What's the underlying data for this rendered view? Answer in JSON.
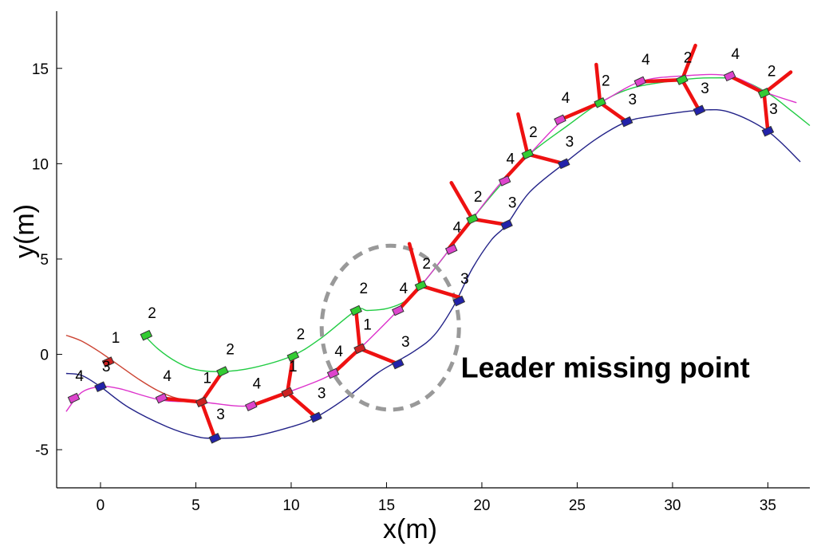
{
  "chart_data": {
    "type": "line",
    "title": "",
    "xlabel": "x(m)",
    "ylabel": "y(m)",
    "xlim": [
      -2.3,
      37.2
    ],
    "ylim": [
      -7,
      18
    ],
    "xticks": [
      "0",
      "5",
      "10",
      "15",
      "20",
      "25",
      "30",
      "35"
    ],
    "yticks": [
      "-5",
      "0",
      "5",
      "10",
      "15"
    ],
    "grid": false,
    "series": [
      {
        "color": "#cc4433",
        "x": [
          -1.8,
          -1.0,
          0.0,
          1.0,
          2.0,
          3.0,
          4.0,
          5.3
        ],
        "y": [
          1.0,
          0.7,
          0.1,
          -0.6,
          -1.3,
          -1.9,
          -2.3,
          -2.5
        ]
      },
      {
        "color": "#22cc44",
        "x": [
          2.3,
          3.0,
          4.0,
          5.0,
          6.4,
          8.0,
          10.0,
          11.5,
          13.4,
          14.0,
          15.0,
          16.0,
          16.8,
          18.0,
          19.5,
          21.0,
          22.5,
          24.5,
          26.2,
          28.0,
          30.5,
          32.0,
          33.5,
          35.0,
          36.2,
          37.2
        ],
        "y": [
          1.0,
          0.3,
          -0.4,
          -0.8,
          -0.9,
          -0.7,
          -0.1,
          0.8,
          2.3,
          2.3,
          2.4,
          2.8,
          3.6,
          5.1,
          7.1,
          8.9,
          10.5,
          12.0,
          13.2,
          14.0,
          14.4,
          14.5,
          14.4,
          13.7,
          12.8,
          12.0
        ]
      },
      {
        "color": "#dd33cc",
        "x": [
          -1.8,
          -1.0,
          0.0,
          1.0,
          3.2,
          5.3,
          7.8,
          9.8,
          12.2,
          13.6,
          15.5,
          16.8,
          18.3,
          19.5,
          21.0,
          22.5,
          24.3,
          26.2,
          28.3,
          30.5,
          33.0,
          35.0,
          36.5
        ],
        "y": [
          -3.0,
          -2.0,
          -1.7,
          -1.8,
          -2.4,
          -2.5,
          -2.7,
          -2.0,
          -1.0,
          0.3,
          2.2,
          3.6,
          5.5,
          7.1,
          9.0,
          10.5,
          12.3,
          13.2,
          14.3,
          14.6,
          14.6,
          13.7,
          13.2
        ]
      },
      {
        "color": "#222288",
        "x": [
          -1.8,
          -1.0,
          0.0,
          1.5,
          3.5,
          5.0,
          6.0,
          8.0,
          10.0,
          11.3,
          13.0,
          14.5,
          15.5,
          16.5,
          17.5,
          18.5,
          19.5,
          20.5,
          21.3,
          22.5,
          24.3,
          26.0,
          27.6,
          29.0,
          31.4,
          33.0,
          35.0,
          36.7
        ],
        "y": [
          -1.0,
          -1.1,
          -1.7,
          -2.8,
          -3.8,
          -4.3,
          -4.4,
          -4.3,
          -3.8,
          -3.3,
          -2.2,
          -1.0,
          -0.4,
          0.2,
          1.0,
          2.5,
          4.5,
          6.0,
          6.8,
          8.5,
          10.0,
          11.3,
          12.2,
          12.5,
          12.8,
          12.7,
          11.7,
          10.1
        ]
      }
    ],
    "robot_markers": [
      {
        "id": "4",
        "x": -1.4,
        "y": -2.3
      },
      {
        "id": "3",
        "x": 0.0,
        "y": -1.7
      },
      {
        "id": "1",
        "x": 0.4,
        "y": -0.4
      },
      {
        "id": "2",
        "x": 2.4,
        "y": 1.0
      },
      {
        "id": "4",
        "x": 3.2,
        "y": -2.3
      },
      {
        "id": "1",
        "x": 5.3,
        "y": -2.5
      },
      {
        "id": "2",
        "x": 6.4,
        "y": -0.9
      },
      {
        "id": "3",
        "x": 6.0,
        "y": -4.4
      },
      {
        "id": "4",
        "x": 7.9,
        "y": -2.7
      },
      {
        "id": "1",
        "x": 9.8,
        "y": -2.0
      },
      {
        "id": "2",
        "x": 10.1,
        "y": -0.1
      },
      {
        "id": "3",
        "x": 11.3,
        "y": -3.3
      },
      {
        "id": "4",
        "x": 12.2,
        "y": -1.0
      },
      {
        "id": "1",
        "x": 13.6,
        "y": 0.3
      },
      {
        "id": "2",
        "x": 13.4,
        "y": 2.3
      },
      {
        "id": "3",
        "x": 15.6,
        "y": -0.5
      },
      {
        "id": "4",
        "x": 15.6,
        "y": 2.3
      },
      {
        "id": "2",
        "x": 16.8,
        "y": 3.6
      },
      {
        "id": "3",
        "x": 18.8,
        "y": 2.8
      },
      {
        "id": "4",
        "x": 18.4,
        "y": 5.5
      },
      {
        "id": "2",
        "x": 19.5,
        "y": 7.1
      },
      {
        "id": "3",
        "x": 21.3,
        "y": 6.8
      },
      {
        "id": "4",
        "x": 21.2,
        "y": 9.1
      },
      {
        "id": "2",
        "x": 22.4,
        "y": 10.5
      },
      {
        "id": "3",
        "x": 24.3,
        "y": 10.0
      },
      {
        "id": "4",
        "x": 24.1,
        "y": 12.3
      },
      {
        "id": "2",
        "x": 26.2,
        "y": 13.2
      },
      {
        "id": "3",
        "x": 27.6,
        "y": 12.2
      },
      {
        "id": "4",
        "x": 28.3,
        "y": 14.3
      },
      {
        "id": "2",
        "x": 30.5,
        "y": 14.4
      },
      {
        "id": "3",
        "x": 31.4,
        "y": 12.8
      },
      {
        "id": "4",
        "x": 33.0,
        "y": 14.6
      },
      {
        "id": "2",
        "x": 34.8,
        "y": 13.7
      },
      {
        "id": "3",
        "x": 35.0,
        "y": 11.7
      }
    ],
    "formation_links": [
      [
        5.3,
        -2.5,
        6.4,
        -0.9
      ],
      [
        5.3,
        -2.5,
        6.0,
        -4.4
      ],
      [
        5.3,
        -2.5,
        3.2,
        -2.3
      ],
      [
        9.8,
        -2.0,
        10.1,
        -0.1
      ],
      [
        9.8,
        -2.0,
        11.3,
        -3.3
      ],
      [
        9.8,
        -2.0,
        7.9,
        -2.7
      ],
      [
        13.6,
        0.3,
        13.4,
        2.3
      ],
      [
        13.6,
        0.3,
        15.6,
        -0.5
      ],
      [
        13.6,
        0.3,
        12.2,
        -1.0
      ],
      [
        16.8,
        3.6,
        16.2,
        5.8
      ],
      [
        16.8,
        3.6,
        18.8,
        3.0
      ],
      [
        16.8,
        3.6,
        15.6,
        2.3
      ],
      [
        19.5,
        7.1,
        18.4,
        9.0
      ],
      [
        19.5,
        7.1,
        21.3,
        6.8
      ],
      [
        19.5,
        7.1,
        18.3,
        5.6
      ],
      [
        22.4,
        10.5,
        21.9,
        12.6
      ],
      [
        22.4,
        10.5,
        24.3,
        10.0
      ],
      [
        22.4,
        10.5,
        21.2,
        9.2
      ],
      [
        26.2,
        13.2,
        26.0,
        15.2
      ],
      [
        26.2,
        13.2,
        27.6,
        12.2
      ],
      [
        26.2,
        13.2,
        24.1,
        12.3
      ],
      [
        30.5,
        14.4,
        31.2,
        16.2
      ],
      [
        30.5,
        14.4,
        31.4,
        12.8
      ],
      [
        30.5,
        14.4,
        28.3,
        14.3
      ],
      [
        34.8,
        13.7,
        36.2,
        14.8
      ],
      [
        34.8,
        13.7,
        35.0,
        11.7
      ],
      [
        34.8,
        13.7,
        33.0,
        14.6
      ]
    ],
    "labels": [
      {
        "text": "4",
        "x": -1.1,
        "y": -1.4
      },
      {
        "text": "3",
        "x": 0.3,
        "y": -0.9
      },
      {
        "text": "1",
        "x": 0.8,
        "y": 0.6
      },
      {
        "text": "2",
        "x": 2.7,
        "y": 1.9
      },
      {
        "text": "4",
        "x": 3.5,
        "y": -1.4
      },
      {
        "text": "1",
        "x": 5.6,
        "y": -1.5
      },
      {
        "text": "2",
        "x": 6.8,
        "y": 0.0
      },
      {
        "text": "3",
        "x": 6.3,
        "y": -3.4
      },
      {
        "text": "4",
        "x": 8.2,
        "y": -1.8
      },
      {
        "text": "1",
        "x": 10.1,
        "y": -0.9
      },
      {
        "text": "2",
        "x": 10.5,
        "y": 0.8
      },
      {
        "text": "3",
        "x": 11.6,
        "y": -2.3
      },
      {
        "text": "4",
        "x": 12.5,
        "y": -0.1
      },
      {
        "text": "1",
        "x": 14.0,
        "y": 1.3
      },
      {
        "text": "2",
        "x": 13.8,
        "y": 3.2
      },
      {
        "text": "3",
        "x": 16.0,
        "y": 0.4
      },
      {
        "text": "4",
        "x": 15.9,
        "y": 3.2
      },
      {
        "text": "2",
        "x": 17.1,
        "y": 4.5
      },
      {
        "text": "3",
        "x": 19.1,
        "y": 3.7
      },
      {
        "text": "4",
        "x": 18.7,
        "y": 6.4
      },
      {
        "text": "2",
        "x": 19.8,
        "y": 8.0
      },
      {
        "text": "3",
        "x": 21.6,
        "y": 7.7
      },
      {
        "text": "4",
        "x": 21.5,
        "y": 10.0
      },
      {
        "text": "2",
        "x": 22.7,
        "y": 11.4
      },
      {
        "text": "3",
        "x": 24.6,
        "y": 10.9
      },
      {
        "text": "4",
        "x": 24.4,
        "y": 13.2
      },
      {
        "text": "2",
        "x": 26.5,
        "y": 14.1
      },
      {
        "text": "3",
        "x": 27.9,
        "y": 13.1
      },
      {
        "text": "4",
        "x": 28.6,
        "y": 15.2
      },
      {
        "text": "2",
        "x": 30.8,
        "y": 15.3
      },
      {
        "text": "3",
        "x": 31.7,
        "y": 13.7
      },
      {
        "text": "4",
        "x": 33.3,
        "y": 15.5
      },
      {
        "text": "2",
        "x": 35.2,
        "y": 14.6
      },
      {
        "text": "3",
        "x": 35.3,
        "y": 12.6
      }
    ],
    "annotation": {
      "text": "Leader missing point",
      "x": 18.9,
      "y": -1.2
    },
    "highlight_circle": {
      "cx": 15.2,
      "cy": 1.4,
      "rx": 3.6,
      "ry": 4.3
    }
  }
}
